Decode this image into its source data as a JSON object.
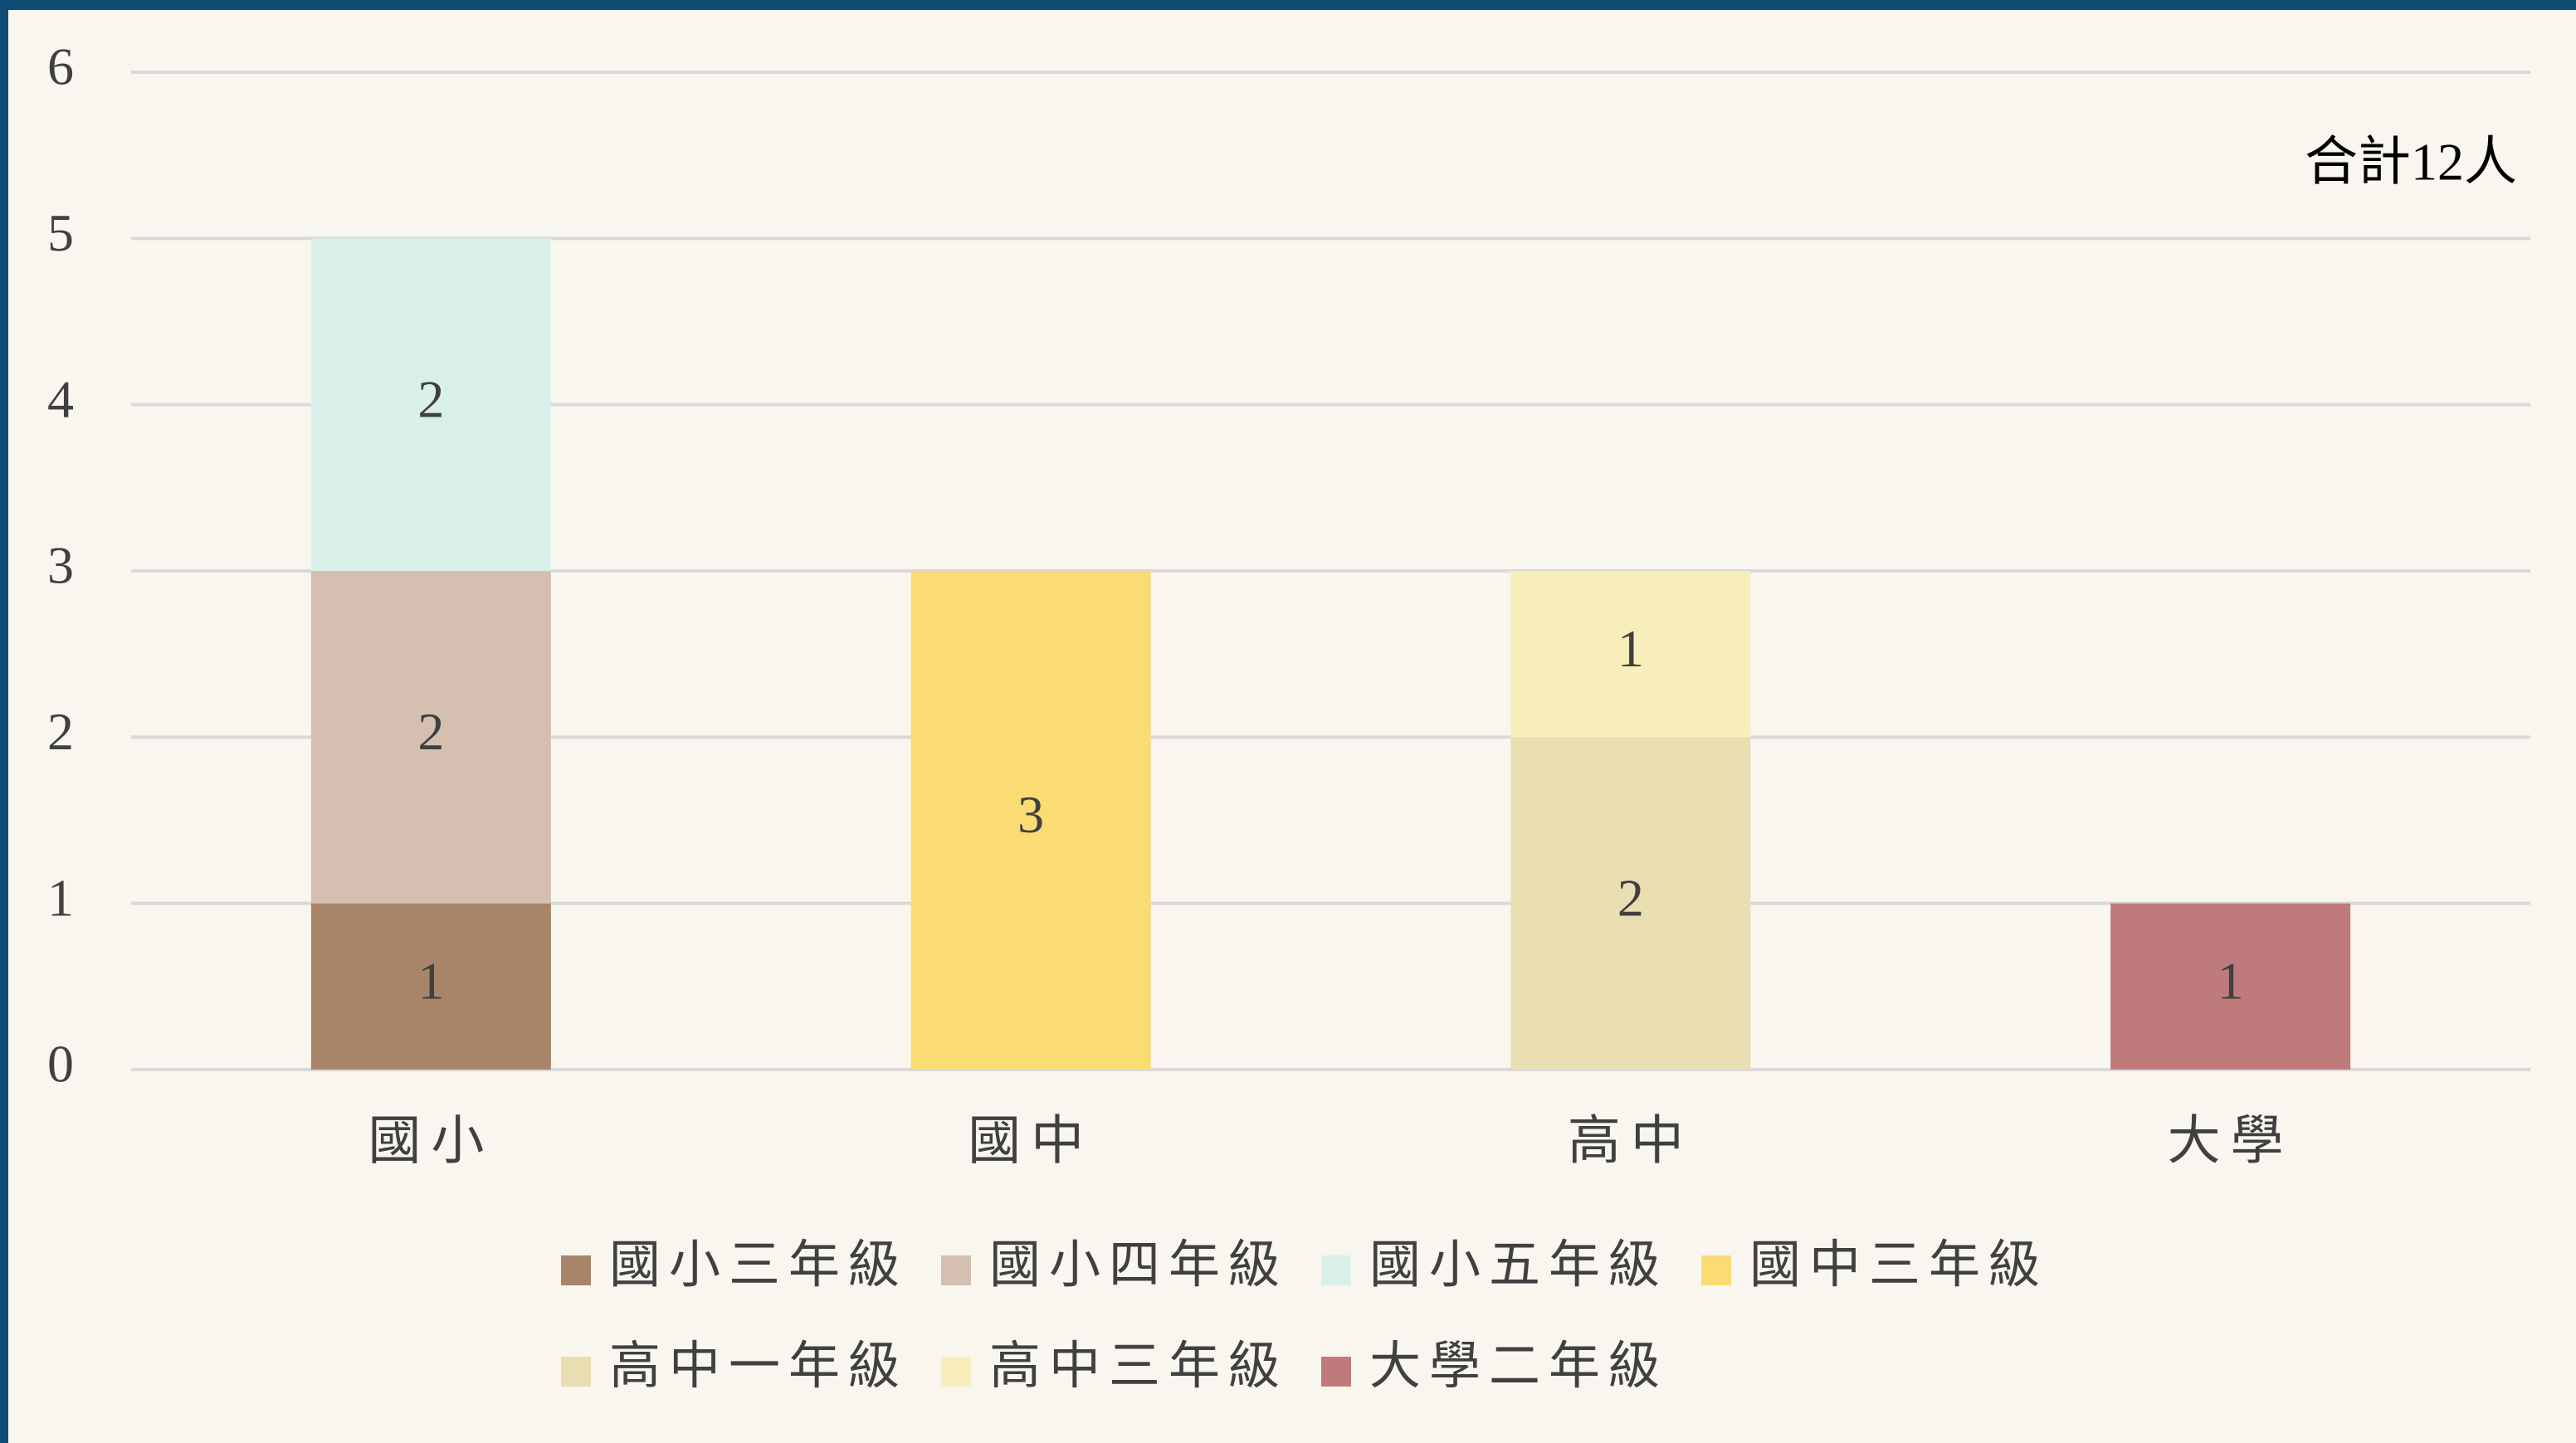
{
  "chart_data": {
    "type": "stacked_bar",
    "annotation": "合計12人",
    "categories": [
      "國小",
      "國中",
      "高中",
      "大學"
    ],
    "series": [
      {
        "name": "國小三年級",
        "color": "#a8856a",
        "values": [
          1,
          null,
          null,
          null
        ]
      },
      {
        "name": "國小四年級",
        "color": "#d5bfb1",
        "values": [
          2,
          null,
          null,
          null
        ]
      },
      {
        "name": "國小五年級",
        "color": "#d9f0ea",
        "values": [
          2,
          null,
          null,
          null
        ]
      },
      {
        "name": "國中三年級",
        "color": "#fbdc72",
        "values": [
          null,
          3,
          null,
          null
        ]
      },
      {
        "name": "高中一年級",
        "color": "#e9ddb2",
        "values": [
          null,
          null,
          2,
          null
        ]
      },
      {
        "name": "高中三年級",
        "color": "#f7eebb",
        "values": [
          null,
          null,
          1,
          null
        ]
      },
      {
        "name": "大學二年級",
        "color": "#bf7b7b",
        "values": [
          null,
          null,
          null,
          1
        ]
      }
    ],
    "ylim": [
      0,
      6
    ],
    "yticks": [
      0,
      1,
      2,
      3,
      4,
      5,
      6
    ],
    "grid": true,
    "legend": "bottom"
  }
}
